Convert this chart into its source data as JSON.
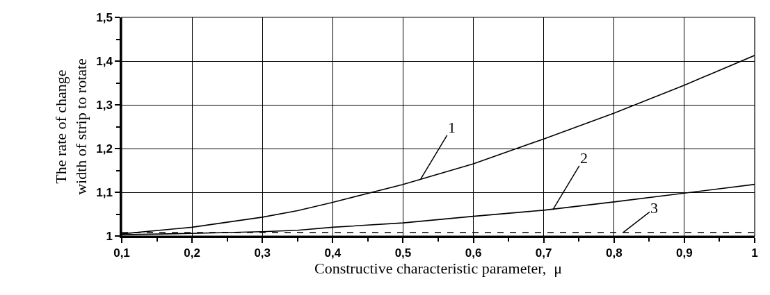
{
  "chart_data": {
    "type": "line",
    "xlabel": "Constructive characteristic parameter,  μ",
    "ylabel": "The rate of change\nwidth of strip to rotate",
    "x": [
      0.1,
      0.2,
      0.3,
      0.35,
      0.4,
      0.5,
      0.6,
      0.7,
      0.8,
      0.9,
      1.0
    ],
    "series": [
      {
        "color": "#000000",
        "line_style": "solid",
        "values": [
          1.005,
          1.02,
          1.043,
          1.058,
          1.077,
          1.118,
          1.165,
          1.222,
          1.281,
          1.345,
          1.413
        ]
      },
      {
        "color": "#000000",
        "line_style": "solid",
        "values": [
          1.003,
          1.006,
          1.01,
          1.013,
          1.02,
          1.03,
          1.045,
          1.059,
          1.078,
          1.098,
          1.118
        ]
      },
      {
        "color": "#000000",
        "line_style": "dashed",
        "values": [
          1.008,
          1.008,
          1.008,
          1.008,
          1.008,
          1.008,
          1.008,
          1.008,
          1.008,
          1.008,
          1.008
        ]
      }
    ],
    "xlim": [
      0.1,
      1.0
    ],
    "xticks": [
      {
        "value": 0.1,
        "label": "0,1"
      },
      {
        "value": 0.15,
        "label": null
      },
      {
        "value": 0.2,
        "label": "0,2"
      },
      {
        "value": 0.25,
        "label": null
      },
      {
        "value": 0.3,
        "label": "0,3"
      },
      {
        "value": 0.35,
        "label": null
      },
      {
        "value": 0.4,
        "label": "0,4"
      },
      {
        "value": 0.45,
        "label": null
      },
      {
        "value": 0.5,
        "label": "0,5"
      },
      {
        "value": 0.55,
        "label": null
      },
      {
        "value": 0.6,
        "label": "0,6"
      },
      {
        "value": 0.65,
        "label": null
      },
      {
        "value": 0.7,
        "label": "0,7"
      },
      {
        "value": 0.75,
        "label": null
      },
      {
        "value": 0.8,
        "label": "0,8"
      },
      {
        "value": 0.85,
        "label": null
      },
      {
        "value": 0.9,
        "label": "0,9"
      },
      {
        "value": 0.95,
        "label": null
      },
      {
        "value": 1.0,
        "label": "1"
      }
    ],
    "ylim": [
      1.0,
      1.5
    ],
    "yticks": [
      {
        "value": 1.0,
        "label": "1"
      },
      {
        "value": 1.05,
        "label": null
      },
      {
        "value": 1.1,
        "label": "1,1"
      },
      {
        "value": 1.15,
        "label": null
      },
      {
        "value": 1.2,
        "label": "1,2"
      },
      {
        "value": 1.25,
        "label": null
      },
      {
        "value": 1.3,
        "label": "1,3"
      },
      {
        "value": 1.35,
        "label": null
      },
      {
        "value": 1.4,
        "label": "1,4"
      },
      {
        "value": 1.45,
        "label": null
      },
      {
        "value": 1.5,
        "label": "1,5"
      }
    ],
    "grid": true,
    "marker": "none",
    "annotations": [
      {
        "text": "1",
        "x": 0.525,
        "y": 1.13
      },
      {
        "text": "2",
        "x": 0.713,
        "y": 1.06
      },
      {
        "text": "3",
        "x": 0.813,
        "y": 1.008
      }
    ]
  }
}
